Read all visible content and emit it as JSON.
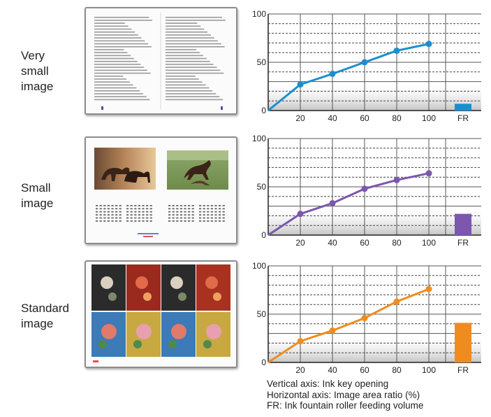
{
  "rows": [
    {
      "label_lines": [
        "Very",
        "small",
        "image"
      ],
      "thumbnail": "text-document-thumbnail"
    },
    {
      "label_lines": [
        "Small",
        "image"
      ],
      "thumbnail": "horse-calendar-thumbnail"
    },
    {
      "label_lines": [
        "Standard",
        "image"
      ],
      "thumbnail": "flower-painting-thumbnail"
    }
  ],
  "legend": [
    "Vertical axis: Ink key opening",
    "Horizontal axis: Image area ratio (%)",
    "FR: Ink fountain roller feeding volume"
  ],
  "chart_data": [
    {
      "type": "line",
      "x": [
        0,
        20,
        40,
        60,
        80,
        100
      ],
      "x_tick_labels": [
        "20",
        "40",
        "60",
        "80",
        "100",
        "FR"
      ],
      "y_tick_labels": [
        "0",
        "50",
        "100"
      ],
      "ylim": [
        0,
        100
      ],
      "series": [
        {
          "values": [
            0,
            27,
            38,
            50,
            62,
            69
          ]
        }
      ],
      "fr_value": 7,
      "color": "#1a8fd0",
      "grid": true
    },
    {
      "type": "line",
      "x": [
        0,
        20,
        40,
        60,
        80,
        100
      ],
      "x_tick_labels": [
        "20",
        "40",
        "60",
        "80",
        "100",
        "FR"
      ],
      "y_tick_labels": [
        "0",
        "50",
        "100"
      ],
      "ylim": [
        0,
        100
      ],
      "series": [
        {
          "values": [
            0,
            22,
            33,
            48,
            57,
            64
          ]
        }
      ],
      "fr_value": 22,
      "color": "#7b57ad",
      "grid": true
    },
    {
      "type": "line",
      "x": [
        0,
        20,
        40,
        60,
        80,
        100
      ],
      "x_tick_labels": [
        "20",
        "40",
        "60",
        "80",
        "100",
        "FR"
      ],
      "y_tick_labels": [
        "0",
        "50",
        "100"
      ],
      "ylim": [
        0,
        100
      ],
      "series": [
        {
          "values": [
            0,
            22,
            33,
            46,
            63,
            76
          ]
        }
      ],
      "fr_value": 41,
      "color": "#f08c1e",
      "grid": true
    }
  ]
}
